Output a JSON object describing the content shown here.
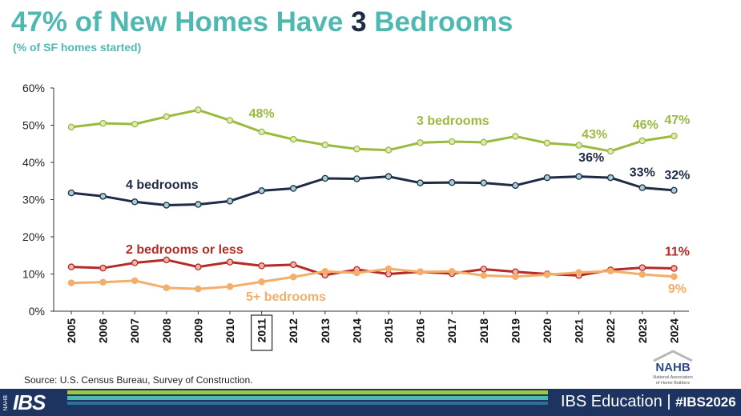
{
  "header": {
    "title_pre": "47% of New Homes Have ",
    "title_num": "3",
    "title_post": " Bedrooms",
    "subtitle": "(% of SF homes started)"
  },
  "chart_data": {
    "type": "line",
    "x": [
      "2005",
      "2006",
      "2007",
      "2008",
      "2009",
      "2010",
      "2011",
      "2012",
      "2013",
      "2014",
      "2015",
      "2016",
      "2017",
      "2018",
      "2019",
      "2020",
      "2021",
      "2022",
      "2023",
      "2024"
    ],
    "highlighted_x": "2011",
    "ylim": [
      0,
      60
    ],
    "yticks": [
      "0%",
      "10%",
      "20%",
      "30%",
      "40%",
      "50%",
      "60%"
    ],
    "grid": false,
    "series": [
      {
        "name": "3 bedrooms",
        "color": "#9aba3e",
        "marker_fill": "#dfe8b8",
        "values": [
          49.5,
          50.5,
          50.3,
          52.3,
          54.1,
          51.3,
          48.2,
          46.2,
          44.7,
          43.6,
          43.3,
          45.3,
          45.6,
          45.4,
          47.0,
          45.2,
          44.6,
          43.0,
          45.8,
          47.1
        ]
      },
      {
        "name": "4 bedrooms",
        "color": "#1d2b45",
        "marker_fill": "#a7cfd6",
        "values": [
          31.8,
          30.9,
          29.4,
          28.5,
          28.7,
          29.6,
          32.4,
          33.0,
          35.7,
          35.6,
          36.2,
          34.5,
          34.6,
          34.5,
          33.8,
          35.9,
          36.2,
          35.9,
          33.2,
          32.5
        ]
      },
      {
        "name": "2 bedrooms or less",
        "color": "#b52a25",
        "marker_fill": "#f2b3ad",
        "values": [
          11.9,
          11.6,
          13.0,
          13.8,
          11.9,
          13.2,
          12.2,
          12.5,
          9.7,
          11.2,
          10.0,
          10.6,
          10.1,
          11.3,
          10.6,
          10.0,
          9.6,
          11.1,
          11.7,
          11.5
        ]
      },
      {
        "name": "5+ bedrooms",
        "color": "#f5ad6a",
        "marker_fill": "#f5ad6a",
        "values": [
          7.6,
          7.8,
          8.2,
          6.3,
          6.0,
          6.6,
          7.9,
          9.2,
          10.7,
          10.3,
          11.4,
          10.6,
          10.7,
          9.6,
          9.3,
          9.8,
          10.4,
          10.8,
          9.9,
          9.3
        ]
      }
    ],
    "annotations": [
      {
        "text": "48%",
        "x": "2011",
        "series": "3 bedrooms"
      },
      {
        "text": "43%",
        "x": "2022",
        "series": "3 bedrooms"
      },
      {
        "text": "46%",
        "x": "2023",
        "series": "3 bedrooms"
      },
      {
        "text": "47%",
        "x": "2024",
        "series": "3 bedrooms"
      },
      {
        "text": "36%",
        "x": "2022",
        "series": "4 bedrooms"
      },
      {
        "text": "33%",
        "x": "2023",
        "series": "4 bedrooms"
      },
      {
        "text": "32%",
        "x": "2024",
        "series": "4 bedrooms"
      },
      {
        "text": "11%",
        "x": "2024",
        "series": "2 bedrooms or less"
      },
      {
        "text": "9%",
        "x": "2024",
        "series": "5+ bedrooms"
      }
    ]
  },
  "source": "Source: U.S. Census Bureau, Survey of Construction.",
  "logo": {
    "text": "NAHB",
    "line1": "National Association",
    "line2": "of Home Builders"
  },
  "footer": {
    "nahb_vertical": "NAHB",
    "ibs": "IBS",
    "education": "IBS Education",
    "separator": "|",
    "hashtag": "#IBS2026"
  }
}
